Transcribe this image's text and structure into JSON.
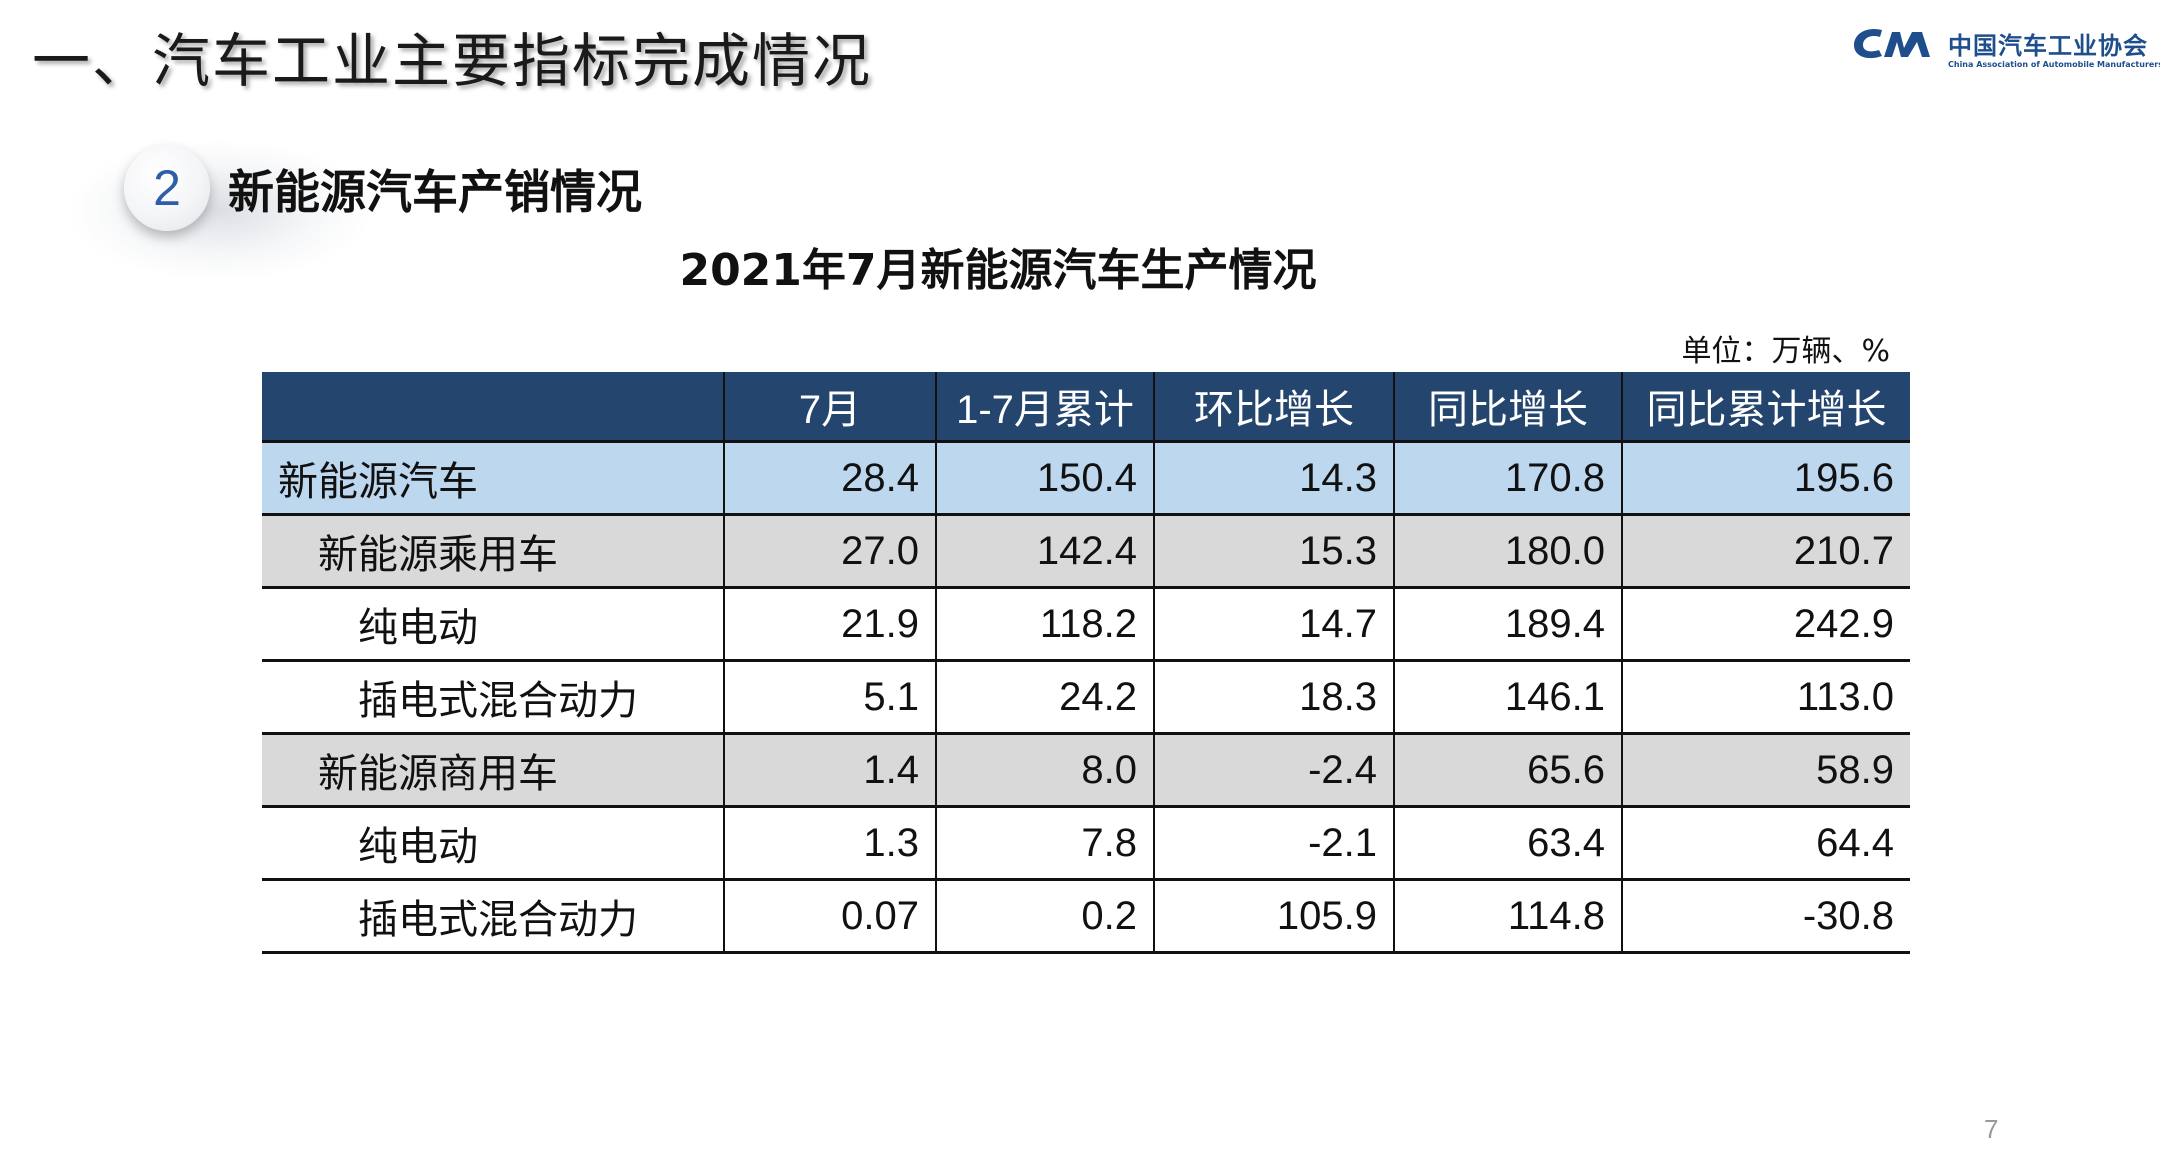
{
  "header": {
    "title": "一、汽车工业主要指标完成情况",
    "logo_cn": "中国汽车工业协会",
    "logo_en": "China Association of Automobile Manufacturers",
    "brand_color": "#1f4e8c"
  },
  "section": {
    "number": "2",
    "title": "新能源汽车产销情况"
  },
  "table": {
    "title": "2021年7月新能源汽车生产情况",
    "unit": "单位：万辆、%",
    "header_color": "#23456e",
    "columns": [
      "",
      "7月",
      "1-7月累计",
      "环比增长",
      "同比增长",
      "同比累计增长"
    ],
    "rows": [
      {
        "level": 0,
        "label": "新能源汽车",
        "values": [
          "28.4",
          "150.4",
          "14.3",
          "170.8",
          "195.6"
        ]
      },
      {
        "level": 1,
        "label": "新能源乘用车",
        "values": [
          "27.0",
          "142.4",
          "15.3",
          "180.0",
          "210.7"
        ]
      },
      {
        "level": 2,
        "label": "纯电动",
        "values": [
          "21.9",
          "118.2",
          "14.7",
          "189.4",
          "242.9"
        ]
      },
      {
        "level": 2,
        "label": "插电式混合动力",
        "values": [
          "5.1",
          "24.2",
          "18.3",
          "146.1",
          "113.0"
        ]
      },
      {
        "level": 1,
        "label": "新能源商用车",
        "values": [
          "1.4",
          "8.0",
          "-2.4",
          "65.6",
          "58.9"
        ]
      },
      {
        "level": 2,
        "label": "纯电动",
        "values": [
          "1.3",
          "7.8",
          "-2.1",
          "63.4",
          "64.4"
        ]
      },
      {
        "level": 2,
        "label": "插电式混合动力",
        "values": [
          "0.07",
          "0.2",
          "105.9",
          "114.8",
          "-30.8"
        ]
      }
    ]
  },
  "footer": {
    "page_number": "7"
  }
}
